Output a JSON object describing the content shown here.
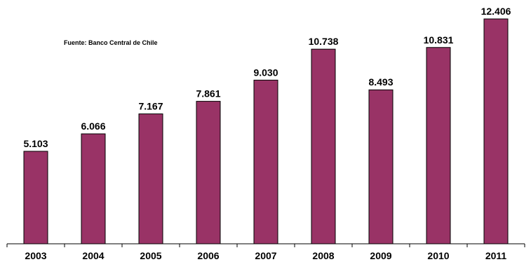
{
  "source_note": "Fuente: Banco Central de Chile",
  "colors": {
    "bar": "#993366",
    "bar_border": "#000000",
    "axis": "#000000"
  },
  "chart_data": {
    "type": "bar",
    "title": "",
    "xlabel": "",
    "ylabel": "",
    "categories": [
      "2003",
      "2004",
      "2005",
      "2006",
      "2007",
      "2008",
      "2009",
      "2010",
      "2011"
    ],
    "values": [
      5103,
      6066,
      7167,
      7861,
      9030,
      10738,
      8493,
      10831,
      12406
    ],
    "value_labels": [
      "5.103",
      "6.066",
      "7.167",
      "7.861",
      "9.030",
      "10.738",
      "8.493",
      "10.831",
      "12.406"
    ],
    "ylim": [
      0,
      12406
    ],
    "grid": false,
    "legend": "none"
  }
}
